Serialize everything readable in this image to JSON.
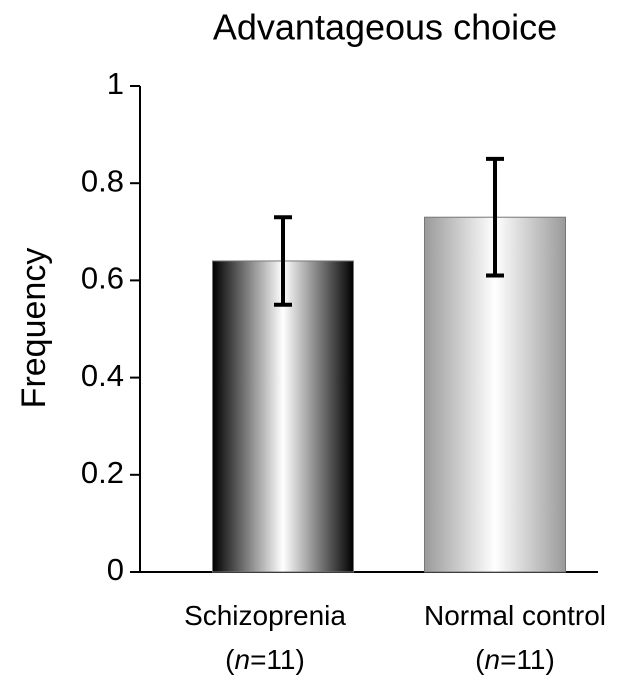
{
  "chart_data": {
    "type": "bar",
    "title": "Advantageous choice",
    "y_label": "Frequency",
    "categories": [
      "Schizoprenia (n=11)",
      "Normal control (n=11)"
    ],
    "values": [
      0.64,
      0.73
    ],
    "errors": [
      0.09,
      0.12
    ],
    "colors": [
      "#000000",
      "#9a9a9a"
    ],
    "ylim": [
      0,
      1
    ],
    "yticks": [
      0,
      0.2,
      0.4,
      0.6,
      0.8,
      1
    ],
    "grid": false
  }
}
